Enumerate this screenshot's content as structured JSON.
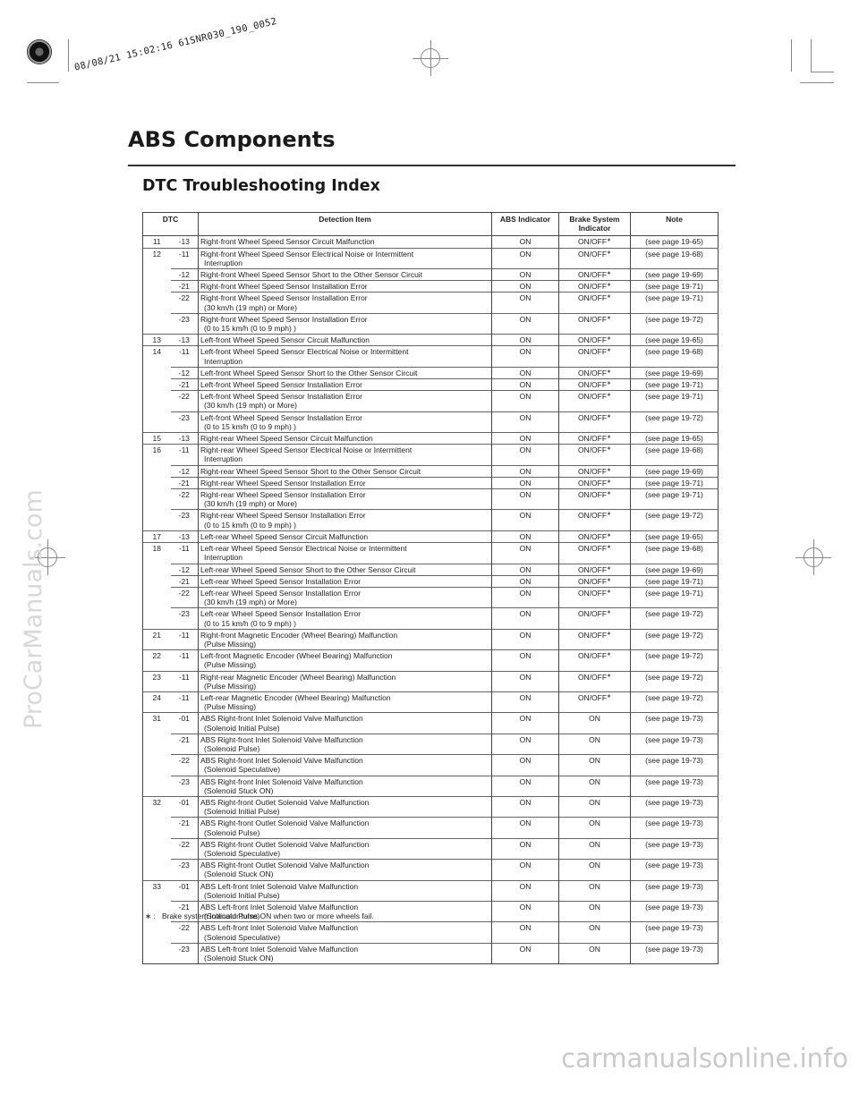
{
  "header": {
    "stamp": "08/08/21 15:02:16 61SNR030_190_0052",
    "title": "ABS Components",
    "section": "DTC Troubleshooting Index"
  },
  "watermarks": {
    "side": "ProCarManuals.com",
    "bottom": "carmanualsonline.info"
  },
  "table": {
    "headers": {
      "dtc": "DTC",
      "item": "Detection Item",
      "abs": "ABS Indicator",
      "brake": "Brake System Indicator",
      "note": "Note"
    },
    "rows": [
      {
        "code": "11",
        "sub": "-13",
        "item": "Right-front Wheel Speed Sensor Circuit Malfunction",
        "abs": "ON",
        "brake": "ON/OFF",
        "ast": true,
        "note": "(see page 19-65)"
      },
      {
        "code": "12",
        "sub": "-11",
        "item": "Right-front Wheel Speed Sensor Electrical Noise or Intermittent",
        "item2": "Interruption",
        "abs": "ON",
        "brake": "ON/OFF",
        "ast": true,
        "note": "(see page 19-68)"
      },
      {
        "code": "",
        "sub": "-12",
        "item": "Right-front Wheel Speed Sensor Short to the Other Sensor Circuit",
        "abs": "ON",
        "brake": "ON/OFF",
        "ast": true,
        "note": "(see page 19-69)"
      },
      {
        "code": "",
        "sub": "-21",
        "item": "Right-front Wheel Speed Sensor Installation Error",
        "abs": "ON",
        "brake": "ON/OFF",
        "ast": true,
        "note": "(see page 19-71)"
      },
      {
        "code": "",
        "sub": "-22",
        "item": "Right-front Wheel Speed Sensor Installation Error",
        "item2": "(30 km/h (19 mph) or More)",
        "abs": "ON",
        "brake": "ON/OFF",
        "ast": true,
        "note": "(see page 19-71)"
      },
      {
        "code": "",
        "sub": "-23",
        "item": "Right-front Wheel Speed Sensor Installation Error",
        "item2": "(0 to 15 km/h (0 to 9 mph) )",
        "abs": "ON",
        "brake": "ON/OFF",
        "ast": true,
        "note": "(see page 19-72)"
      },
      {
        "code": "13",
        "sub": "-13",
        "item": "Left-front Wheel Speed Sensor Circuit Malfunction",
        "abs": "ON",
        "brake": "ON/OFF",
        "ast": true,
        "note": "(see page 19-65)"
      },
      {
        "code": "14",
        "sub": "-11",
        "item": "Left-front Wheel Speed Sensor Electrical Noise or Intermittent",
        "item2": "Interruption",
        "abs": "ON",
        "brake": "ON/OFF",
        "ast": true,
        "note": "(see page 19-68)"
      },
      {
        "code": "",
        "sub": "-12",
        "item": "Left-front Wheel Speed Sensor Short to the Other Sensor Circuit",
        "abs": "ON",
        "brake": "ON/OFF",
        "ast": true,
        "note": "(see page 19-69)"
      },
      {
        "code": "",
        "sub": "-21",
        "item": "Left-front Wheel Speed Sensor Installation Error",
        "abs": "ON",
        "brake": "ON/OFF",
        "ast": true,
        "note": "(see page 19-71)"
      },
      {
        "code": "",
        "sub": "-22",
        "item": "Left-front Wheel Speed Sensor Installation Error",
        "item2": "(30 km/h (19 mph) or More)",
        "abs": "ON",
        "brake": "ON/OFF",
        "ast": true,
        "note": "(see page 19-71)"
      },
      {
        "code": "",
        "sub": "-23",
        "item": "Left-front Wheel Speed Sensor Installation Error",
        "item2": "(0 to 15 km/h (0 to 9 mph) )",
        "abs": "ON",
        "brake": "ON/OFF",
        "ast": true,
        "note": "(see page 19-72)"
      },
      {
        "code": "15",
        "sub": "-13",
        "item": "Right-rear Wheel Speed Sensor Circuit Malfunction",
        "abs": "ON",
        "brake": "ON/OFF",
        "ast": true,
        "note": "(see page 19-65)"
      },
      {
        "code": "16",
        "sub": "-11",
        "item": "Right-rear Wheel Speed Sensor Electrical Noise or Intermittent",
        "item2": "Interruption",
        "abs": "ON",
        "brake": "ON/OFF",
        "ast": true,
        "note": "(see page 19-68)"
      },
      {
        "code": "",
        "sub": "-12",
        "item": "Right-rear Wheel Speed Sensor Short to the Other Sensor Circuit",
        "abs": "ON",
        "brake": "ON/OFF",
        "ast": true,
        "note": "(see page 19-69)"
      },
      {
        "code": "",
        "sub": "-21",
        "item": "Right-rear Wheel Speed Sensor Installation Error",
        "abs": "ON",
        "brake": "ON/OFF",
        "ast": true,
        "note": "(see page 19-71)"
      },
      {
        "code": "",
        "sub": "-22",
        "item": "Right-rear Wheel Speed Sensor Installation Error",
        "item2": "(30 km/h (19 mph) or More)",
        "abs": "ON",
        "brake": "ON/OFF",
        "ast": true,
        "note": "(see page 19-71)"
      },
      {
        "code": "",
        "sub": "-23",
        "item": "Right-rear Wheel Speed Sensor Installation Error",
        "item2": "(0 to 15 km/h (0 to 9 mph) )",
        "abs": "ON",
        "brake": "ON/OFF",
        "ast": true,
        "note": "(see page 19-72)"
      },
      {
        "code": "17",
        "sub": "-13",
        "item": "Left-rear Wheel Speed Sensor Circuit Malfunction",
        "abs": "ON",
        "brake": "ON/OFF",
        "ast": true,
        "note": "(see page 19-65)"
      },
      {
        "code": "18",
        "sub": "-11",
        "item": "Left-rear Wheel Speed Sensor Electrical Noise or Intermittent",
        "item2": "Interruption",
        "abs": "ON",
        "brake": "ON/OFF",
        "ast": true,
        "note": "(see page 19-68)"
      },
      {
        "code": "",
        "sub": "-12",
        "item": "Left-rear Wheel Speed Sensor Short to the Other Sensor Circuit",
        "abs": "ON",
        "brake": "ON/OFF",
        "ast": true,
        "note": "(see page 19-69)"
      },
      {
        "code": "",
        "sub": "-21",
        "item": "Left-rear Wheel Speed Sensor Installation Error",
        "abs": "ON",
        "brake": "ON/OFF",
        "ast": true,
        "note": "(see page 19-71)"
      },
      {
        "code": "",
        "sub": "-22",
        "item": "Left-rear Wheel Speed Sensor Installation Error",
        "item2": "(30 km/h (19 mph) or More)",
        "abs": "ON",
        "brake": "ON/OFF",
        "ast": true,
        "note": "(see page 19-71)"
      },
      {
        "code": "",
        "sub": "-23",
        "item": "Left-rear Wheel Speed Sensor Installation Error",
        "item2": "(0 to 15 km/h (0 to 9 mph) )",
        "abs": "ON",
        "brake": "ON/OFF",
        "ast": true,
        "note": "(see page 19-72)"
      },
      {
        "code": "21",
        "sub": "-11",
        "item": "Right-front Magnetic Encoder (Wheel Bearing) Malfunction",
        "item2": "(Pulse Missing)",
        "abs": "ON",
        "brake": "ON/OFF",
        "ast": true,
        "note": "(see page 19-72)"
      },
      {
        "code": "22",
        "sub": "-11",
        "item": "Left-front Magnetic Encoder (Wheel Bearing) Malfunction",
        "item2": "(Pulse Missing)",
        "abs": "ON",
        "brake": "ON/OFF",
        "ast": true,
        "note": "(see page 19-72)"
      },
      {
        "code": "23",
        "sub": "-11",
        "item": "Right-rear Magnetic Encoder (Wheel Bearing) Malfunction",
        "item2": "(Pulse Missing)",
        "abs": "ON",
        "brake": "ON/OFF",
        "ast": true,
        "note": "(see page 19-72)"
      },
      {
        "code": "24",
        "sub": "-11",
        "item": "Left-rear Magnetic Encoder (Wheel Bearing) Malfunction",
        "item2": "(Pulse Missing)",
        "abs": "ON",
        "brake": "ON/OFF",
        "ast": true,
        "note": "(see page 19-72)"
      },
      {
        "code": "31",
        "sub": "-01",
        "item": "ABS Right-front Inlet Solenoid Valve Malfunction",
        "item2": "(Solenoid Initial Pulse)",
        "abs": "ON",
        "brake": "ON",
        "ast": false,
        "note": "(see page 19-73)"
      },
      {
        "code": "",
        "sub": "-21",
        "item": "ABS Right-front Inlet Solenoid Valve Malfunction",
        "item2": "(Solenoid Pulse)",
        "abs": "ON",
        "brake": "ON",
        "ast": false,
        "note": "(see page 19-73)"
      },
      {
        "code": "",
        "sub": "-22",
        "item": "ABS Right-front Inlet Solenoid Valve Malfunction",
        "item2": "(Solenoid Speculative)",
        "abs": "ON",
        "brake": "ON",
        "ast": false,
        "note": "(see page 19-73)"
      },
      {
        "code": "",
        "sub": "-23",
        "item": "ABS Right-front Inlet Solenoid Valve Malfunction",
        "item2": "(Solenoid Stuck ON)",
        "abs": "ON",
        "brake": "ON",
        "ast": false,
        "note": "(see page 19-73)"
      },
      {
        "code": "32",
        "sub": "-01",
        "item": "ABS Right-front Outlet Solenoid Valve Malfunction",
        "item2": "(Solenoid Initial Pulse)",
        "abs": "ON",
        "brake": "ON",
        "ast": false,
        "note": "(see page 19-73)"
      },
      {
        "code": "",
        "sub": "-21",
        "item": "ABS Right-front Outlet Solenoid Valve Malfunction",
        "item2": "(Solenoid Pulse)",
        "abs": "ON",
        "brake": "ON",
        "ast": false,
        "note": "(see page 19-73)"
      },
      {
        "code": "",
        "sub": "-22",
        "item": "ABS Right-front Outlet Solenoid Valve Malfunction",
        "item2": "(Solenoid Speculative)",
        "abs": "ON",
        "brake": "ON",
        "ast": false,
        "note": "(see page 19-73)"
      },
      {
        "code": "",
        "sub": "-23",
        "item": "ABS Right-front Outlet Solenoid Valve Malfunction",
        "item2": "(Solenoid Stuck ON)",
        "abs": "ON",
        "brake": "ON",
        "ast": false,
        "note": "(see page 19-73)"
      },
      {
        "code": "33",
        "sub": "-01",
        "item": "ABS Left-front Inlet Solenoid Valve Malfunction",
        "item2": "(Solenoid Initial Pulse)",
        "abs": "ON",
        "brake": "ON",
        "ast": false,
        "note": "(see page 19-73)"
      },
      {
        "code": "",
        "sub": "-21",
        "item": "ABS Left-front Inlet Solenoid Valve Malfunction",
        "item2": "(Solenoid Pulse)",
        "abs": "ON",
        "brake": "ON",
        "ast": false,
        "note": "(see page 19-73)"
      },
      {
        "code": "",
        "sub": "-22",
        "item": "ABS Left-front Inlet Solenoid Valve Malfunction",
        "item2": "(Solenoid Speculative)",
        "abs": "ON",
        "brake": "ON",
        "ast": false,
        "note": "(see page 19-73)"
      },
      {
        "code": "",
        "sub": "-23",
        "item": "ABS Left-front Inlet Solenoid Valve Malfunction",
        "item2": "(Solenoid Stuck ON)",
        "abs": "ON",
        "brake": "ON",
        "ast": false,
        "note": "(see page 19-73)"
      }
    ]
  },
  "footnote": {
    "marker": "∗ :",
    "text": "Brake system indicator turns ON when two or more wheels fail."
  }
}
